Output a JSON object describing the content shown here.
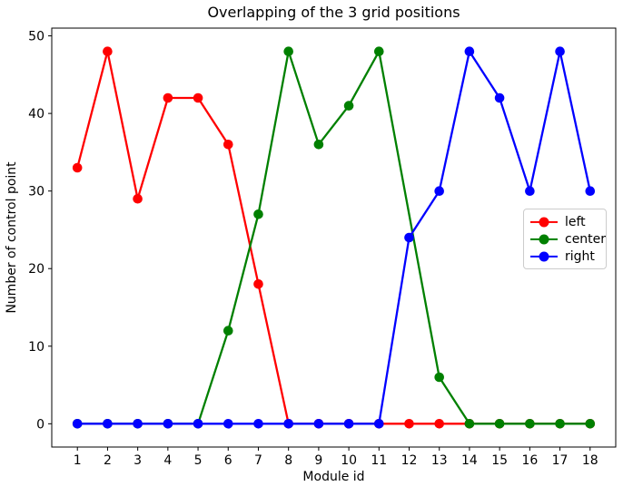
{
  "chart_data": {
    "type": "line",
    "title": "Overlapping of the 3 grid positions",
    "xlabel": "Module id",
    "ylabel": "Number of control point",
    "x": [
      1,
      2,
      3,
      4,
      5,
      6,
      7,
      8,
      9,
      10,
      11,
      12,
      13,
      14,
      15,
      16,
      17,
      18
    ],
    "x_tick_labels": [
      "1",
      "2",
      "3",
      "4",
      "5",
      "6",
      "7",
      "8",
      "9",
      "10",
      "11",
      "12",
      "13",
      "14",
      "15",
      "16",
      "17",
      "18"
    ],
    "y_ticks": [
      0,
      10,
      20,
      30,
      40,
      50
    ],
    "xlim": [
      0.15,
      18.85
    ],
    "ylim": [
      -3,
      51
    ],
    "grid": false,
    "plot_background": "#ffffff",
    "legend_position": "center right",
    "series": [
      {
        "name": "left",
        "color": "#ff0000",
        "values": [
          33,
          48,
          29,
          42,
          42,
          36,
          18,
          0,
          0,
          0,
          0,
          0,
          0,
          0,
          0,
          0,
          0,
          0
        ]
      },
      {
        "name": "center",
        "color": "#008000",
        "values": [
          0,
          0,
          0,
          0,
          0,
          12,
          27,
          48,
          36,
          41,
          48,
          null,
          6,
          0,
          0,
          0,
          0,
          0
        ]
      },
      {
        "name": "right",
        "color": "#0000ff",
        "values": [
          0,
          0,
          0,
          0,
          0,
          0,
          0,
          0,
          0,
          0,
          0,
          24,
          30,
          48,
          42,
          30,
          48,
          30
        ]
      }
    ]
  }
}
